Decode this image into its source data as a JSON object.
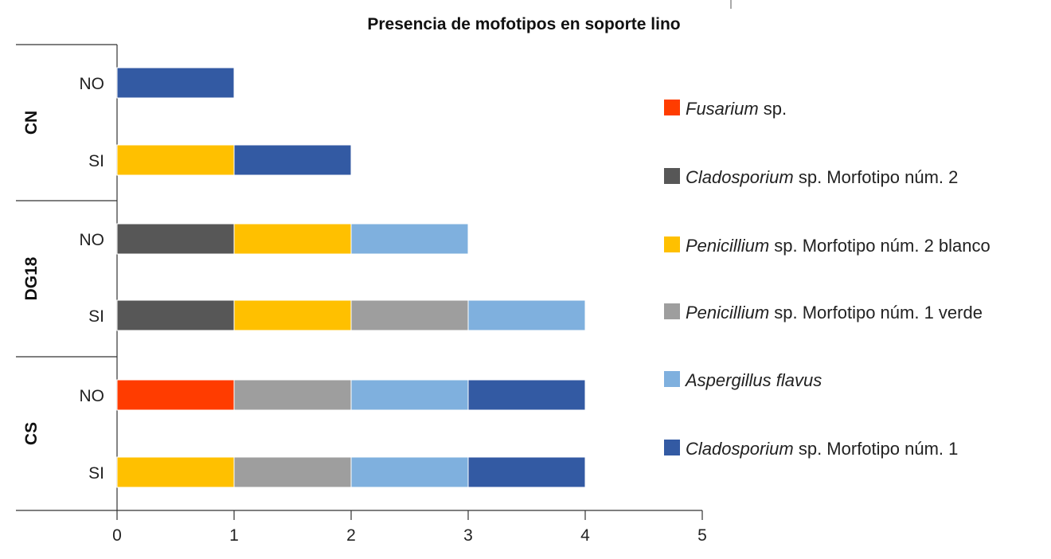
{
  "chart_data": {
    "type": "bar",
    "orientation": "horizontal",
    "stacked": true,
    "title": "Presencia de mofotipos en soporte lino",
    "xlim": [
      0,
      5
    ],
    "xticks": [
      "0",
      "1",
      "2",
      "3",
      "4",
      "5"
    ],
    "groups": [
      {
        "label": "CN",
        "rows": [
          {
            "label": "NO",
            "segments": [
              {
                "series": 5,
                "value": 1
              }
            ]
          },
          {
            "label": "SI",
            "segments": [
              {
                "series": 2,
                "value": 1
              },
              {
                "series": 5,
                "value": 1
              }
            ]
          }
        ]
      },
      {
        "label": "DG18",
        "rows": [
          {
            "label": "NO",
            "segments": [
              {
                "series": 1,
                "value": 1
              },
              {
                "series": 2,
                "value": 1
              },
              {
                "series": 4,
                "value": 1
              }
            ]
          },
          {
            "label": "SI",
            "segments": [
              {
                "series": 1,
                "value": 1
              },
              {
                "series": 2,
                "value": 1
              },
              {
                "series": 3,
                "value": 1
              },
              {
                "series": 4,
                "value": 1
              }
            ]
          }
        ]
      },
      {
        "label": "CS",
        "rows": [
          {
            "label": "NO",
            "segments": [
              {
                "series": 0,
                "value": 1
              },
              {
                "series": 3,
                "value": 1
              },
              {
                "series": 4,
                "value": 1
              },
              {
                "series": 5,
                "value": 1
              }
            ]
          },
          {
            "label": "SI",
            "segments": [
              {
                "series": 2,
                "value": 1
              },
              {
                "series": 3,
                "value": 1
              },
              {
                "series": 4,
                "value": 1
              },
              {
                "series": 5,
                "value": 1
              }
            ]
          }
        ]
      }
    ],
    "series": [
      {
        "genus": "Fusarium",
        "rest": " sp.",
        "color": "#ff3c00"
      },
      {
        "genus": "Cladosporium",
        "rest": " sp. Morfotipo núm. 2",
        "color": "#575757"
      },
      {
        "genus": "Penicillium",
        "rest": " sp. Morfotipo núm. 2 blanco",
        "color": "#ffc000"
      },
      {
        "genus": "Penicillium",
        "rest": " sp. Morfotipo núm. 1 verde",
        "color": "#9e9e9e"
      },
      {
        "genus": "Aspergillus flavus",
        "rest": "",
        "color": "#7fb0de"
      },
      {
        "genus": "Cladosporium",
        "rest": " sp. Morfotipo núm. 1",
        "color": "#335aa3"
      }
    ],
    "legend_position": "right"
  }
}
